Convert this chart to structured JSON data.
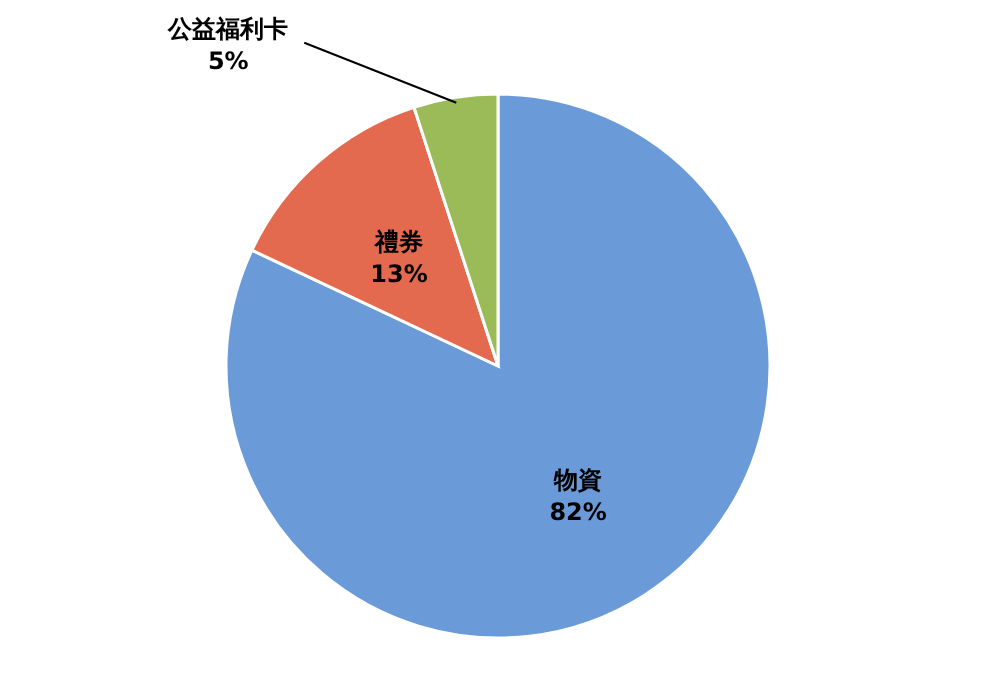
{
  "chart_data": {
    "type": "pie",
    "categories": [
      "物資",
      "禮券",
      "公益福利卡"
    ],
    "values": [
      82,
      13,
      5
    ],
    "colors": [
      "#6a9bd8",
      "#e46a4f",
      "#9bbb59"
    ],
    "value_labels": [
      "82%",
      "13%",
      "5%"
    ]
  }
}
